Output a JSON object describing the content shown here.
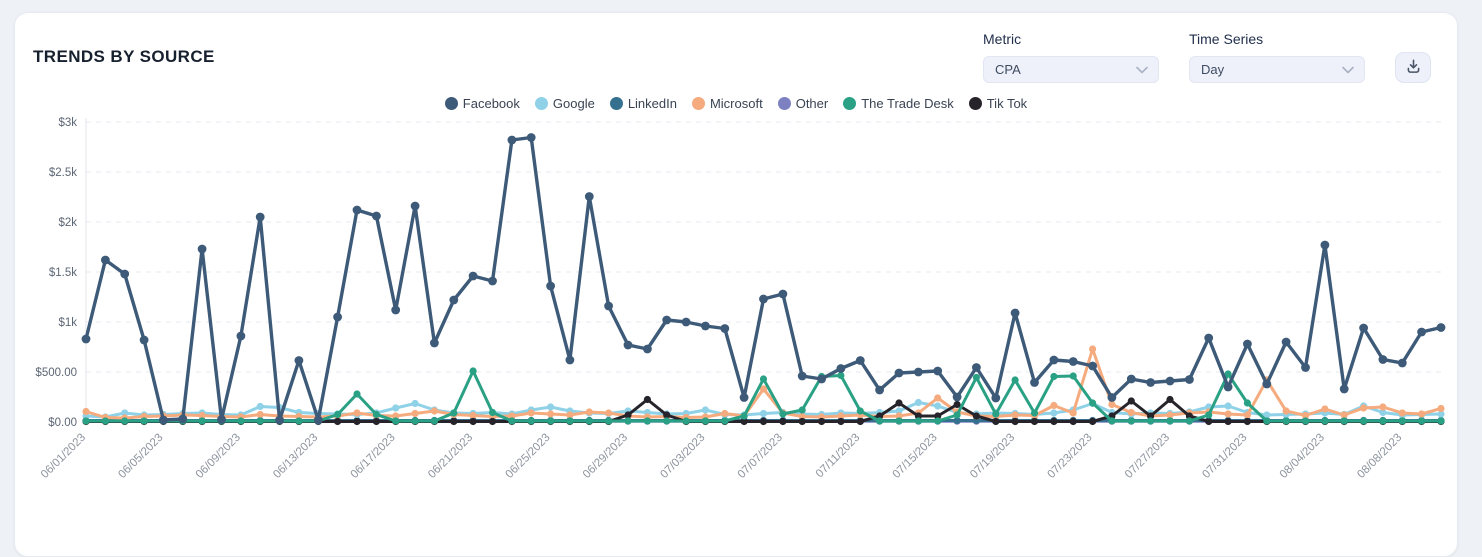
{
  "header": {
    "title": "TRENDS BY SOURCE"
  },
  "controls": {
    "metric_label": "Metric",
    "metric_value": "CPA",
    "time_series_label": "Time Series",
    "time_series_value": "Day"
  },
  "chart_data": {
    "type": "line",
    "title": "",
    "xlabel": "",
    "ylabel": "",
    "ylim": [
      0,
      3000
    ],
    "grid": "dashed-horizontal",
    "legend_position": "top-center",
    "y_ticks": {
      "values": [
        0,
        500,
        1000,
        1500,
        2000,
        2500,
        3000
      ],
      "labels": [
        "$0.00",
        "$500.00",
        "$1k",
        "$1.5k",
        "$2k",
        "$2.5k",
        "$3k"
      ]
    },
    "x_tick_every": 4,
    "x": [
      "06/01/2023",
      "06/02/2023",
      "06/03/2023",
      "06/04/2023",
      "06/05/2023",
      "06/06/2023",
      "06/07/2023",
      "06/08/2023",
      "06/09/2023",
      "06/10/2023",
      "06/11/2023",
      "06/12/2023",
      "06/13/2023",
      "06/14/2023",
      "06/15/2023",
      "06/16/2023",
      "06/17/2023",
      "06/18/2023",
      "06/19/2023",
      "06/20/2023",
      "06/21/2023",
      "06/22/2023",
      "06/23/2023",
      "06/24/2023",
      "06/25/2023",
      "06/26/2023",
      "06/27/2023",
      "06/28/2023",
      "06/29/2023",
      "06/30/2023",
      "07/01/2023",
      "07/02/2023",
      "07/03/2023",
      "07/04/2023",
      "07/05/2023",
      "07/06/2023",
      "07/07/2023",
      "07/08/2023",
      "07/09/2023",
      "07/10/2023",
      "07/11/2023",
      "07/12/2023",
      "07/13/2023",
      "07/14/2023",
      "07/15/2023",
      "07/16/2023",
      "07/17/2023",
      "07/18/2023",
      "07/19/2023",
      "07/20/2023",
      "07/21/2023",
      "07/22/2023",
      "07/23/2023",
      "07/24/2023",
      "07/25/2023",
      "07/26/2023",
      "07/27/2023",
      "07/28/2023",
      "07/29/2023",
      "07/30/2023",
      "07/31/2023",
      "08/01/2023",
      "08/02/2023",
      "08/03/2023",
      "08/04/2023",
      "08/05/2023",
      "08/06/2023",
      "08/07/2023",
      "08/08/2023",
      "08/09/2023",
      "08/10/2023"
    ],
    "series": [
      {
        "name": "Facebook",
        "color": "#3d5a78",
        "values": [
          830,
          1620,
          1480,
          820,
          20,
          30,
          1730,
          25,
          860,
          2050,
          20,
          615,
          20,
          1050,
          2120,
          2060,
          1120,
          2160,
          790,
          1220,
          1460,
          1410,
          2820,
          2845,
          1360,
          620,
          2255,
          1160,
          770,
          730,
          1020,
          1000,
          960,
          935,
          245,
          1230,
          1280,
          460,
          430,
          535,
          615,
          320,
          490,
          500,
          510,
          250,
          545,
          240,
          1090,
          395,
          620,
          605,
          560,
          245,
          430,
          395,
          410,
          425,
          840,
          350,
          780,
          380,
          800,
          545,
          1770,
          330,
          940,
          625,
          590,
          900,
          945
        ]
      },
      {
        "name": "Google",
        "color": "#8fd1e7",
        "values": [
          60,
          50,
          90,
          70,
          75,
          85,
          90,
          75,
          70,
          155,
          145,
          95,
          85,
          80,
          75,
          90,
          140,
          185,
          120,
          90,
          85,
          95,
          80,
          120,
          150,
          110,
          90,
          85,
          110,
          95,
          80,
          85,
          120,
          75,
          70,
          85,
          95,
          80,
          75,
          90,
          85,
          95,
          110,
          195,
          160,
          95,
          80,
          90,
          85,
          75,
          90,
          120,
          185,
          95,
          80,
          90,
          85,
          100,
          150,
          160,
          95,
          70,
          75,
          80,
          90,
          75,
          160,
          95,
          70,
          75,
          80
        ]
      },
      {
        "name": "LinkedIn",
        "color": "#35718f",
        "values": [
          15,
          15,
          15,
          15,
          15,
          15,
          15,
          15,
          15,
          15,
          15,
          15,
          15,
          15,
          15,
          15,
          15,
          15,
          15,
          15,
          15,
          15,
          15,
          15,
          15,
          15,
          15,
          15,
          15,
          15,
          15,
          15,
          15,
          15,
          15,
          15,
          15,
          15,
          15,
          15,
          15,
          15,
          15,
          15,
          15,
          15,
          15,
          15,
          15,
          15,
          15,
          15,
          15,
          15,
          15,
          15,
          15,
          15,
          15,
          15,
          15,
          15,
          15,
          15,
          15,
          15,
          15,
          15,
          15,
          15,
          15
        ]
      },
      {
        "name": "Microsoft",
        "color": "#f5ab7e",
        "values": [
          105,
          45,
          40,
          55,
          60,
          70,
          65,
          55,
          50,
          75,
          60,
          55,
          50,
          60,
          90,
          65,
          60,
          85,
          110,
          75,
          65,
          55,
          60,
          90,
          80,
          70,
          100,
          90,
          60,
          50,
          55,
          45,
          50,
          85,
          60,
          330,
          90,
          55,
          50,
          60,
          70,
          55,
          60,
          90,
          240,
          100,
          60,
          55,
          70,
          65,
          165,
          90,
          730,
          175,
          95,
          60,
          70,
          90,
          100,
          80,
          70,
          420,
          110,
          65,
          130,
          70,
          140,
          150,
          90,
          80,
          135
        ]
      },
      {
        "name": "Other",
        "color": "#7d81c2",
        "values": [
          8,
          8,
          8,
          8,
          8,
          8,
          8,
          8,
          8,
          8,
          8,
          8,
          8,
          8,
          8,
          8,
          8,
          8,
          8,
          8,
          8,
          8,
          8,
          8,
          8,
          8,
          8,
          8,
          8,
          8,
          8,
          8,
          8,
          8,
          8,
          8,
          8,
          8,
          8,
          8,
          8,
          8,
          8,
          8,
          8,
          8,
          8,
          8,
          8,
          8,
          8,
          8,
          8,
          8,
          8,
          8,
          8,
          8,
          8,
          8,
          8,
          8,
          8,
          8,
          8,
          8,
          8,
          8,
          8,
          8,
          8
        ]
      },
      {
        "name": "The Trade Desk",
        "color": "#2aa184",
        "values": [
          10,
          10,
          10,
          10,
          10,
          10,
          10,
          10,
          10,
          10,
          10,
          10,
          10,
          75,
          280,
          75,
          10,
          10,
          10,
          90,
          510,
          95,
          10,
          10,
          10,
          10,
          10,
          10,
          10,
          10,
          10,
          10,
          10,
          10,
          60,
          430,
          80,
          120,
          455,
          465,
          110,
          10,
          10,
          10,
          10,
          70,
          445,
          80,
          420,
          90,
          455,
          460,
          190,
          10,
          10,
          10,
          10,
          10,
          70,
          480,
          190,
          10,
          10,
          10,
          10,
          10,
          10,
          10,
          10,
          10,
          10
        ]
      },
      {
        "name": "Tik Tok",
        "color": "#26242a",
        "values": [
          5,
          5,
          5,
          5,
          5,
          5,
          5,
          5,
          5,
          5,
          5,
          5,
          5,
          5,
          5,
          5,
          5,
          5,
          5,
          5,
          5,
          5,
          5,
          5,
          5,
          5,
          5,
          5,
          70,
          225,
          70,
          5,
          5,
          5,
          5,
          5,
          5,
          5,
          5,
          5,
          5,
          60,
          190,
          60,
          60,
          175,
          60,
          5,
          5,
          5,
          5,
          5,
          5,
          60,
          210,
          60,
          225,
          60,
          5,
          5,
          5,
          5,
          5,
          5,
          5,
          5,
          5,
          5,
          5,
          5,
          5
        ]
      }
    ]
  }
}
